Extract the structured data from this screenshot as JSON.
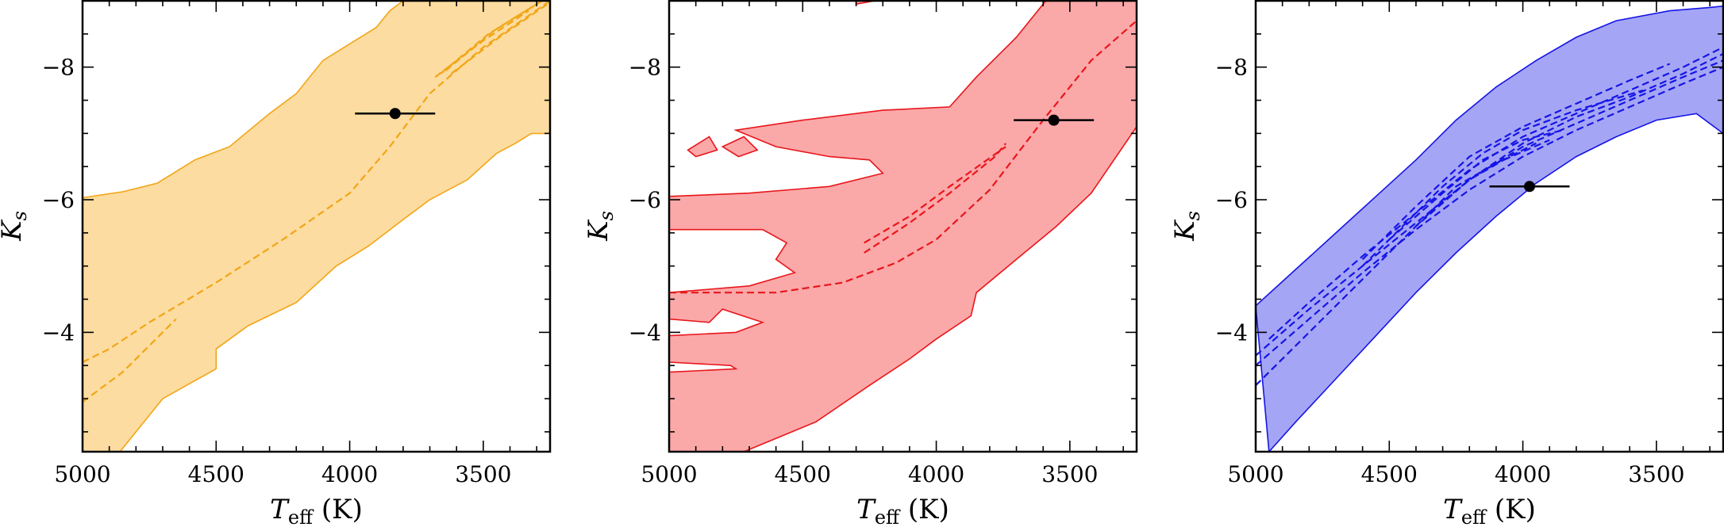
{
  "chart_data": [
    {
      "type": "area",
      "panel": "left",
      "color": "#f2a516",
      "fill_color": "#fcdca0",
      "xlabel_main": "T",
      "xlabel_sub": "eff",
      "xlabel_unit": " (K)",
      "ylabel_main": "K",
      "ylabel_sub": "s",
      "xlim": [
        5000,
        3250
      ],
      "ylim": [
        -2.2,
        -9.0
      ],
      "xticks": [
        5000,
        4500,
        4000,
        3500
      ],
      "xtick_labels": [
        "5000",
        "4500",
        "4000",
        "3500"
      ],
      "yticks": [
        -4,
        -6,
        -8
      ],
      "ytick_labels": [
        "−4",
        "−6",
        "−8"
      ],
      "band": {
        "upper": [
          [
            5000,
            -6.03
          ],
          [
            4850,
            -6.12
          ],
          [
            4720,
            -6.25
          ],
          [
            4580,
            -6.6
          ],
          [
            4450,
            -6.8
          ],
          [
            4300,
            -7.3
          ],
          [
            4200,
            -7.6
          ],
          [
            4100,
            -8.1
          ],
          [
            3980,
            -8.4
          ],
          [
            3900,
            -8.6
          ],
          [
            3850,
            -8.85
          ],
          [
            3800,
            -9.0
          ],
          [
            3250,
            -9.0
          ]
        ],
        "lower": [
          [
            5000,
            -2.2
          ],
          [
            4860,
            -2.2
          ],
          [
            4700,
            -3.0
          ],
          [
            4500,
            -3.45
          ],
          [
            4500,
            -3.75
          ],
          [
            4380,
            -4.1
          ],
          [
            4200,
            -4.45
          ],
          [
            4050,
            -5.0
          ],
          [
            3930,
            -5.3
          ],
          [
            3800,
            -5.7
          ],
          [
            3700,
            -6.0
          ],
          [
            3560,
            -6.3
          ],
          [
            3450,
            -6.7
          ],
          [
            3380,
            -6.85
          ],
          [
            3320,
            -7.0
          ],
          [
            3250,
            -7.0
          ]
        ]
      },
      "tracks": [
        {
          "points": [
            [
              5000,
              -3.55
            ],
            [
              4900,
              -3.75
            ],
            [
              4750,
              -4.15
            ],
            [
              4500,
              -4.75
            ],
            [
              4250,
              -5.4
            ],
            [
              4000,
              -6.1
            ],
            [
              3850,
              -6.8
            ],
            [
              3700,
              -7.6
            ],
            [
              3500,
              -8.3
            ],
            [
              3250,
              -9.0
            ]
          ]
        },
        {
          "points": [
            [
              5000,
              -2.95
            ],
            [
              4850,
              -3.4
            ],
            [
              4650,
              -4.2
            ]
          ]
        },
        {
          "points": [
            [
              3680,
              -7.85
            ],
            [
              3500,
              -8.4
            ],
            [
              3330,
              -8.85
            ]
          ]
        },
        {
          "points": [
            [
              3660,
              -7.9
            ],
            [
              3480,
              -8.5
            ],
            [
              3300,
              -8.95
            ]
          ]
        },
        {
          "points": [
            [
              3640,
              -7.95
            ],
            [
              3460,
              -8.55
            ],
            [
              3280,
              -9.0
            ]
          ]
        },
        {
          "points": [
            [
              3620,
              -7.9
            ],
            [
              3440,
              -8.45
            ],
            [
              3260,
              -8.95
            ]
          ]
        }
      ],
      "point": {
        "teff": 3830,
        "ks": -7.3,
        "xerr": 150
      }
    },
    {
      "type": "area",
      "panel": "middle",
      "color": "#e8161b",
      "fill_color": "#fba8a9",
      "xlabel_main": "T",
      "xlabel_sub": "eff",
      "xlabel_unit": " (K)",
      "ylabel_main": "K",
      "ylabel_sub": "s",
      "xlim": [
        5000,
        3250
      ],
      "ylim": [
        -2.2,
        -9.0
      ],
      "xticks": [
        5000,
        4500,
        4000,
        3500
      ],
      "xtick_labels": [
        "5000",
        "4500",
        "4000",
        "3500"
      ],
      "yticks": [
        -4,
        -6,
        -8
      ],
      "ytick_labels": [
        "−4",
        "−6",
        "−8"
      ],
      "band": {
        "upper": [
          [
            5000,
            -6.05
          ],
          [
            4700,
            -6.1
          ],
          [
            4400,
            -6.2
          ],
          [
            4200,
            -6.4
          ],
          [
            4250,
            -6.6
          ],
          [
            4400,
            -6.65
          ],
          [
            4600,
            -6.8
          ],
          [
            4750,
            -7.05
          ],
          [
            4500,
            -7.2
          ],
          [
            4200,
            -7.35
          ],
          [
            3950,
            -7.4
          ],
          [
            3850,
            -7.85
          ],
          [
            3700,
            -8.45
          ],
          [
            3590,
            -9.0
          ],
          [
            3250,
            -9.0
          ]
        ],
        "lower": [
          [
            5000,
            -2.2
          ],
          [
            4720,
            -2.2
          ],
          [
            4450,
            -2.65
          ],
          [
            4250,
            -3.2
          ],
          [
            4100,
            -3.6
          ],
          [
            4000,
            -3.9
          ],
          [
            3870,
            -4.25
          ],
          [
            3850,
            -4.6
          ],
          [
            3700,
            -5.1
          ],
          [
            3550,
            -5.6
          ],
          [
            3420,
            -6.1
          ],
          [
            3250,
            -7.1
          ]
        ]
      },
      "holes": [
        [
          [
            5000,
            -5.55
          ],
          [
            4650,
            -5.55
          ],
          [
            4560,
            -5.35
          ],
          [
            4600,
            -5.1
          ],
          [
            4530,
            -4.9
          ],
          [
            4700,
            -4.7
          ],
          [
            5000,
            -4.6
          ]
        ],
        [
          [
            5000,
            -4.2
          ],
          [
            4850,
            -4.15
          ],
          [
            4800,
            -4.35
          ],
          [
            4650,
            -4.15
          ],
          [
            4750,
            -4.0
          ],
          [
            5000,
            -3.95
          ]
        ],
        [
          [
            5000,
            -3.55
          ],
          [
            4770,
            -3.5
          ],
          [
            4750,
            -3.45
          ],
          [
            5000,
            -3.4
          ]
        ]
      ],
      "islands": [
        [
          [
            4900,
            -6.65
          ],
          [
            4820,
            -6.75
          ],
          [
            4850,
            -6.95
          ],
          [
            4930,
            -6.75
          ]
        ],
        [
          [
            4740,
            -6.65
          ],
          [
            4670,
            -6.75
          ],
          [
            4720,
            -6.95
          ],
          [
            4800,
            -6.8
          ]
        ],
        [
          [
            4300,
            -8.95
          ],
          [
            4230,
            -9.0
          ],
          [
            4300,
            -9.0
          ]
        ]
      ],
      "tracks": [
        {
          "points": [
            [
              5000,
              -4.6
            ],
            [
              4600,
              -4.6
            ],
            [
              4350,
              -4.75
            ],
            [
              4150,
              -5.05
            ],
            [
              4000,
              -5.4
            ],
            [
              3800,
              -6.15
            ],
            [
              3600,
              -7.2
            ],
            [
              3420,
              -8.1
            ],
            [
              3250,
              -8.7
            ]
          ]
        },
        {
          "points": [
            [
              4270,
              -5.2
            ],
            [
              4100,
              -5.65
            ],
            [
              3950,
              -6.1
            ],
            [
              3780,
              -6.65
            ],
            [
              3740,
              -6.85
            ]
          ]
        },
        {
          "points": [
            [
              4270,
              -5.35
            ],
            [
              4100,
              -5.75
            ],
            [
              3950,
              -6.2
            ],
            [
              3740,
              -6.8
            ]
          ]
        }
      ],
      "point": {
        "teff": 3560,
        "ks": -7.2,
        "xerr": 150
      }
    },
    {
      "type": "area",
      "panel": "right",
      "color": "#1515e6",
      "fill_color": "#a5a5f5",
      "xlabel_main": "T",
      "xlabel_sub": "eff",
      "xlabel_unit": " (K)",
      "ylabel_main": "K",
      "ylabel_sub": "s",
      "xlim": [
        5000,
        3250
      ],
      "ylim": [
        -2.2,
        -9.0
      ],
      "xticks": [
        5000,
        4500,
        4000,
        3500
      ],
      "xtick_labels": [
        "5000",
        "4500",
        "4000",
        "3500"
      ],
      "yticks": [
        -4,
        -6,
        -8
      ],
      "ytick_labels": [
        "−4",
        "−6",
        "−8"
      ],
      "band": {
        "upper": [
          [
            5000,
            -4.4
          ],
          [
            4850,
            -4.95
          ],
          [
            4700,
            -5.5
          ],
          [
            4550,
            -6.05
          ],
          [
            4400,
            -6.6
          ],
          [
            4250,
            -7.2
          ],
          [
            4100,
            -7.7
          ],
          [
            3950,
            -8.1
          ],
          [
            3800,
            -8.45
          ],
          [
            3650,
            -8.7
          ],
          [
            3450,
            -8.85
          ],
          [
            3300,
            -8.9
          ],
          [
            3250,
            -8.92
          ]
        ],
        "lower": [
          [
            4950,
            -2.2
          ],
          [
            4850,
            -2.65
          ],
          [
            4700,
            -3.3
          ],
          [
            4550,
            -3.95
          ],
          [
            4400,
            -4.6
          ],
          [
            4250,
            -5.2
          ],
          [
            4100,
            -5.75
          ],
          [
            3950,
            -6.25
          ],
          [
            3800,
            -6.65
          ],
          [
            3650,
            -6.95
          ],
          [
            3500,
            -7.2
          ],
          [
            3350,
            -7.3
          ],
          [
            3250,
            -7.0
          ]
        ]
      },
      "tracks": [
        {
          "points": [
            [
              5000,
              -3.2
            ],
            [
              4800,
              -4.0
            ],
            [
              4600,
              -4.8
            ],
            [
              4400,
              -5.6
            ],
            [
              4200,
              -6.3
            ],
            [
              4000,
              -6.85
            ],
            [
              3800,
              -7.25
            ],
            [
              3600,
              -7.55
            ],
            [
              3400,
              -7.9
            ],
            [
              3250,
              -8.2
            ]
          ]
        },
        {
          "points": [
            [
              5000,
              -3.5
            ],
            [
              4800,
              -4.2
            ],
            [
              4600,
              -4.9
            ],
            [
              4400,
              -5.55
            ],
            [
              4200,
              -6.15
            ],
            [
              4000,
              -6.65
            ],
            [
              3800,
              -7.05
            ],
            [
              3600,
              -7.4
            ],
            [
              3400,
              -7.75
            ],
            [
              3250,
              -8.0
            ]
          ]
        },
        {
          "points": [
            [
              5000,
              -3.65
            ],
            [
              4800,
              -4.35
            ],
            [
              4600,
              -5.0
            ],
            [
              4400,
              -5.65
            ],
            [
              4200,
              -6.3
            ],
            [
              4000,
              -6.8
            ],
            [
              3800,
              -7.15
            ],
            [
              3600,
              -7.5
            ],
            [
              3400,
              -7.85
            ],
            [
              3250,
              -8.1
            ]
          ]
        },
        {
          "points": [
            [
              4950,
              -3.9
            ],
            [
              4800,
              -4.45
            ],
            [
              4600,
              -5.15
            ],
            [
              4400,
              -5.8
            ],
            [
              4200,
              -6.45
            ],
            [
              4000,
              -6.95
            ],
            [
              3800,
              -7.3
            ],
            [
              3600,
              -7.65
            ],
            [
              3400,
              -8.0
            ],
            [
              3250,
              -8.3
            ]
          ]
        },
        {
          "points": [
            [
              4600,
              -5.1
            ],
            [
              4400,
              -5.9
            ],
            [
              4200,
              -6.65
            ],
            [
              4000,
              -7.1
            ],
            [
              3800,
              -7.45
            ],
            [
              3600,
              -7.8
            ],
            [
              3450,
              -8.05
            ]
          ]
        },
        {
          "points": [
            [
              4600,
              -5.0
            ],
            [
              4450,
              -5.6
            ],
            [
              4300,
              -6.2
            ],
            [
              4150,
              -6.7
            ],
            [
              4000,
              -7.05
            ],
            [
              3800,
              -7.35
            ],
            [
              3550,
              -7.65
            ]
          ]
        },
        {
          "points": [
            [
              4500,
              -5.4
            ],
            [
              4300,
              -6.1
            ],
            [
              4150,
              -6.6
            ],
            [
              4000,
              -6.9
            ],
            [
              3850,
              -7.05
            ]
          ]
        },
        {
          "points": [
            [
              4400,
              -5.6
            ],
            [
              4250,
              -6.2
            ],
            [
              4100,
              -6.55
            ],
            [
              3900,
              -6.9
            ]
          ]
        },
        {
          "points": [
            [
              4350,
              -5.8
            ],
            [
              4200,
              -6.3
            ],
            [
              4050,
              -6.65
            ],
            [
              3950,
              -6.85
            ]
          ]
        }
      ],
      "point": {
        "teff": 3975,
        "ks": -6.2,
        "xerr": 150
      }
    }
  ]
}
